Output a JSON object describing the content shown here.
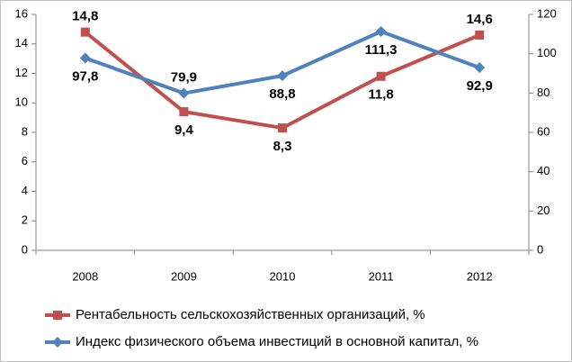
{
  "chart_data": {
    "type": "line",
    "categories": [
      "2008",
      "2009",
      "2010",
      "2011",
      "2012"
    ],
    "series": [
      {
        "name": "Рентабельность сельскохозяйственных организаций, %",
        "color": "#c0504d",
        "marker": "square",
        "axis": "y",
        "values": [
          14.8,
          9.4,
          8.3,
          11.8,
          14.6
        ],
        "value_labels": [
          "14,8",
          "9,4",
          "8,3",
          "11,8",
          "14,6"
        ]
      },
      {
        "name": "Индекс физического объема инвестиций в основной капитал, %",
        "color": "#4f81bd",
        "marker": "diamond",
        "axis": "y2",
        "values": [
          97.8,
          79.9,
          88.8,
          111.3,
          92.9
        ],
        "value_labels": [
          "97,8",
          "79,9",
          "88,8",
          "111,3",
          "92,9"
        ]
      }
    ],
    "ylim": [
      0,
      16
    ],
    "yticks": [
      0,
      2,
      4,
      6,
      8,
      10,
      12,
      14,
      16
    ],
    "y2lim": [
      0,
      120
    ],
    "y2ticks": [
      0,
      20,
      40,
      60,
      80,
      100,
      120
    ],
    "grid": false,
    "legend": "bottom"
  }
}
